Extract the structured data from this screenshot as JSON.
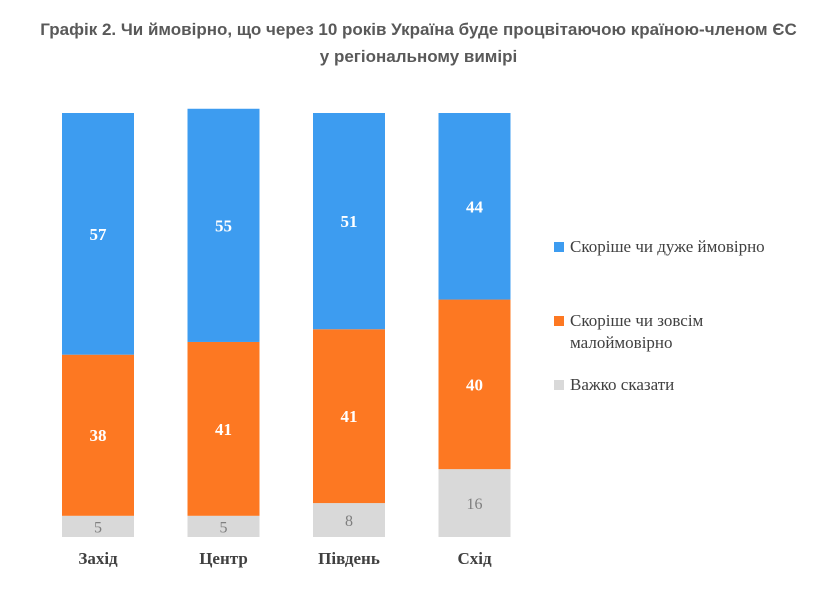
{
  "title_line1": "Графік 2. Чи ймовірно, що через 10 років Україна буде процвітаючою країною-членом ЄС",
  "title_line2": "у регіональному вимірі",
  "chart_data": {
    "type": "bar",
    "stacked": true,
    "orientation": "vertical",
    "unit": "%",
    "categories": [
      "Захід",
      "Центр",
      "Південь",
      "Схід"
    ],
    "series": [
      {
        "name": "Скоріше чи дуже ймовірно",
        "color": "#3d9cf0",
        "values": [
          57,
          55,
          51,
          44
        ]
      },
      {
        "name": "Скоріше чи зовсім маловірно",
        "name_display": [
          "Скоріше чи зовсім",
          "малоймовірно"
        ],
        "color": "#fd7822",
        "values": [
          38,
          41,
          41,
          40
        ]
      },
      {
        "name": "Важко сказати",
        "color": "#d9d9d9",
        "values": [
          5,
          5,
          8,
          16
        ]
      }
    ],
    "ylim": [
      0,
      100
    ],
    "grid": false,
    "legend_position": "right"
  }
}
